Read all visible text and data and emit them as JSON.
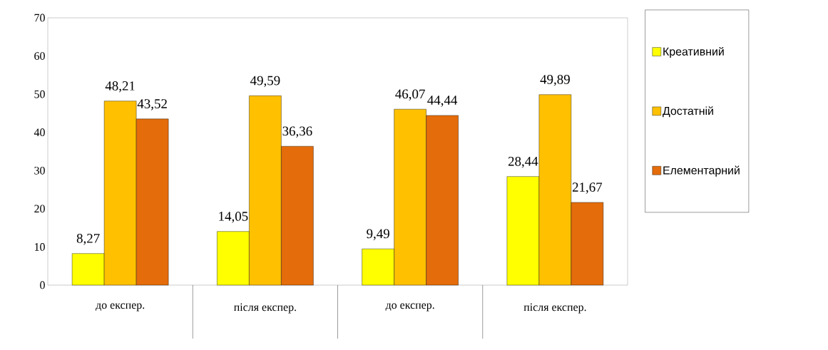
{
  "chart_data": {
    "type": "bar",
    "categories": [
      "до експер.",
      "після експер.",
      "до експер.",
      "після експер."
    ],
    "series": [
      {
        "name": "Креативний",
        "color": "#ffff00",
        "values": [
          8.27,
          14.05,
          9.49,
          28.44
        ],
        "value_labels": [
          "8,27",
          "14,05",
          "9,49",
          "28,44"
        ]
      },
      {
        "name": "Достатній",
        "color": "#ffc000",
        "values": [
          48.21,
          49.59,
          46.07,
          49.89
        ],
        "value_labels": [
          "48,21",
          "49,59",
          "46,07",
          "49,89"
        ]
      },
      {
        "name": "Елементарний",
        "color": "#e46c0a",
        "values": [
          43.52,
          36.36,
          44.44,
          21.67
        ],
        "value_labels": [
          "43,52",
          "36,36",
          "44,44",
          "21,67"
        ]
      }
    ],
    "ylim": [
      0,
      70
    ],
    "yticks": [
      0,
      10,
      20,
      30,
      40,
      50,
      60,
      70
    ],
    "grid": false,
    "legend": "right"
  }
}
